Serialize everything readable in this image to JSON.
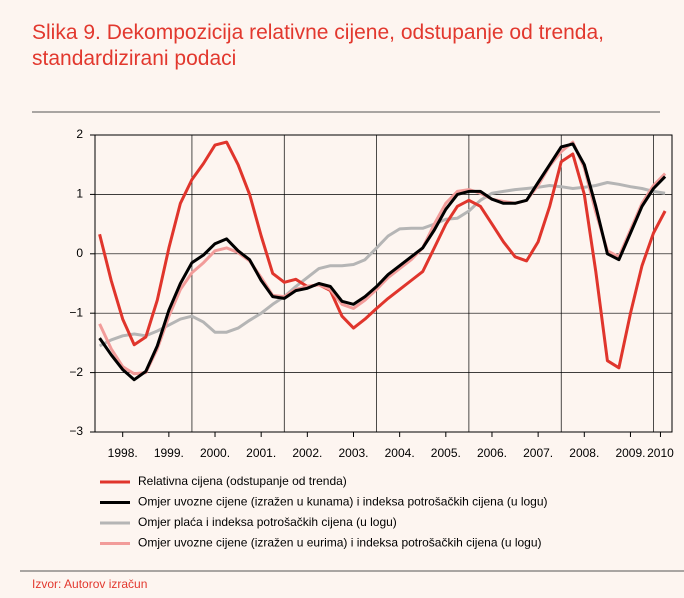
{
  "chart_data": {
    "type": "line",
    "title": "Slika 9. Dekompozicija relativne cijene, odstupanje od trenda, standardizirani podaci",
    "source": "Izvor: Autorov izračun",
    "x": [
      1998,
      1998.25,
      1998.5,
      1998.75,
      1999,
      1999.25,
      1999.5,
      1999.75,
      2000,
      2000.25,
      2000.5,
      2000.75,
      2001,
      2001.25,
      2001.5,
      2001.75,
      2002,
      2002.25,
      2002.5,
      2002.75,
      2003,
      2003.25,
      2003.5,
      2003.75,
      2004,
      2004.25,
      2004.5,
      2004.75,
      2005,
      2005.25,
      2005.5,
      2005.75,
      2006,
      2006.25,
      2006.5,
      2006.75,
      2007,
      2007.25,
      2007.5,
      2007.75,
      2008,
      2008.25,
      2008.5,
      2008.75,
      2009,
      2009.25,
      2009.5,
      2009.75,
      2010,
      2010.25
    ],
    "series": [
      {
        "name": "Relativna cijena (odstupanje od trenda)",
        "color": "#e0352c",
        "values": [
          0.33,
          -0.45,
          -1.1,
          -1.53,
          -1.4,
          -0.78,
          0.1,
          0.85,
          1.25,
          1.52,
          1.83,
          1.88,
          1.5,
          1.0,
          0.3,
          -0.33,
          -0.48,
          -0.43,
          -0.55,
          -0.52,
          -0.62,
          -1.05,
          -1.25,
          -1.1,
          -0.92,
          -0.75,
          -0.6,
          -0.45,
          -0.3,
          0.1,
          0.5,
          0.8,
          0.9,
          0.8,
          0.5,
          0.2,
          -0.05,
          -0.12,
          0.2,
          0.8,
          1.55,
          1.68,
          1.0,
          -0.3,
          -1.8,
          -1.92,
          -1.0,
          -0.2,
          0.35,
          0.72
        ]
      },
      {
        "name": "Omjer uvozne cijene (izražen u kunama) i indeksa potrošačkih cijena (u logu)",
        "color": "#000000",
        "values": [
          -1.42,
          -1.7,
          -1.95,
          -2.12,
          -1.98,
          -1.55,
          -0.95,
          -0.5,
          -0.15,
          -0.02,
          0.17,
          0.25,
          0.05,
          -0.1,
          -0.45,
          -0.72,
          -0.75,
          -0.62,
          -0.58,
          -0.5,
          -0.55,
          -0.8,
          -0.85,
          -0.72,
          -0.55,
          -0.35,
          -0.2,
          -0.05,
          0.1,
          0.4,
          0.75,
          1.0,
          1.05,
          1.05,
          0.92,
          0.85,
          0.85,
          0.9,
          1.2,
          1.5,
          1.8,
          1.85,
          1.5,
          0.8,
          0.0,
          -0.1,
          0.35,
          0.8,
          1.1,
          1.3
        ]
      },
      {
        "name": "Omjer plaća i indeksa potrošačkih cijena (u logu)",
        "color": "#b5b5b5",
        "values": [
          -1.55,
          -1.45,
          -1.38,
          -1.35,
          -1.38,
          -1.3,
          -1.2,
          -1.1,
          -1.05,
          -1.15,
          -1.32,
          -1.32,
          -1.25,
          -1.12,
          -1.0,
          -0.85,
          -0.72,
          -0.55,
          -0.4,
          -0.25,
          -0.2,
          -0.2,
          -0.18,
          -0.1,
          0.1,
          0.3,
          0.42,
          0.43,
          0.43,
          0.5,
          0.58,
          0.6,
          0.72,
          0.9,
          1.02,
          1.05,
          1.08,
          1.1,
          1.12,
          1.15,
          1.13,
          1.1,
          1.12,
          1.15,
          1.2,
          1.17,
          1.13,
          1.1,
          1.05,
          1.02
        ]
      },
      {
        "name": "Omjer uvozne cijene (izražen u eurima) i indeksa potrošačkih cijena (u logu)",
        "color": "#f29c9a",
        "values": [
          -1.18,
          -1.6,
          -1.9,
          -2.02,
          -2.0,
          -1.6,
          -1.05,
          -0.6,
          -0.32,
          -0.15,
          0.05,
          0.1,
          0.02,
          -0.12,
          -0.4,
          -0.7,
          -0.72,
          -0.6,
          -0.55,
          -0.52,
          -0.6,
          -0.85,
          -0.92,
          -0.78,
          -0.6,
          -0.4,
          -0.25,
          -0.1,
          0.1,
          0.5,
          0.85,
          1.05,
          1.08,
          1.02,
          0.92,
          0.88,
          0.85,
          0.9,
          1.15,
          1.48,
          1.72,
          1.88,
          1.45,
          0.7,
          0.05,
          -0.05,
          0.4,
          0.85,
          1.15,
          1.35
        ]
      }
    ],
    "xlim": [
      1997.9,
      2010.4
    ],
    "xticks": [
      {
        "value": 1998.5,
        "label": "1998."
      },
      {
        "value": 1999.5,
        "label": "1999."
      },
      {
        "value": 2000.5,
        "label": "2000."
      },
      {
        "value": 2001.5,
        "label": "2001."
      },
      {
        "value": 2002.5,
        "label": "2002."
      },
      {
        "value": 2003.5,
        "label": "2003."
      },
      {
        "value": 2004.5,
        "label": "2004."
      },
      {
        "value": 2005.5,
        "label": "2005."
      },
      {
        "value": 2006.5,
        "label": "2006."
      },
      {
        "value": 2007.5,
        "label": "2007."
      },
      {
        "value": 2008.5,
        "label": "2008."
      },
      {
        "value": 2009.5,
        "label": "2009."
      },
      {
        "value": 2010.15,
        "label": "2010"
      }
    ],
    "xgrid": [
      2000,
      2002,
      2004,
      2006,
      2008,
      2010
    ],
    "ylim": [
      -3,
      2
    ],
    "yticks": [
      {
        "value": -3,
        "label": "−3"
      },
      {
        "value": -2,
        "label": "−2"
      },
      {
        "value": -1,
        "label": "−1"
      },
      0,
      1,
      2
    ],
    "grid": true
  }
}
